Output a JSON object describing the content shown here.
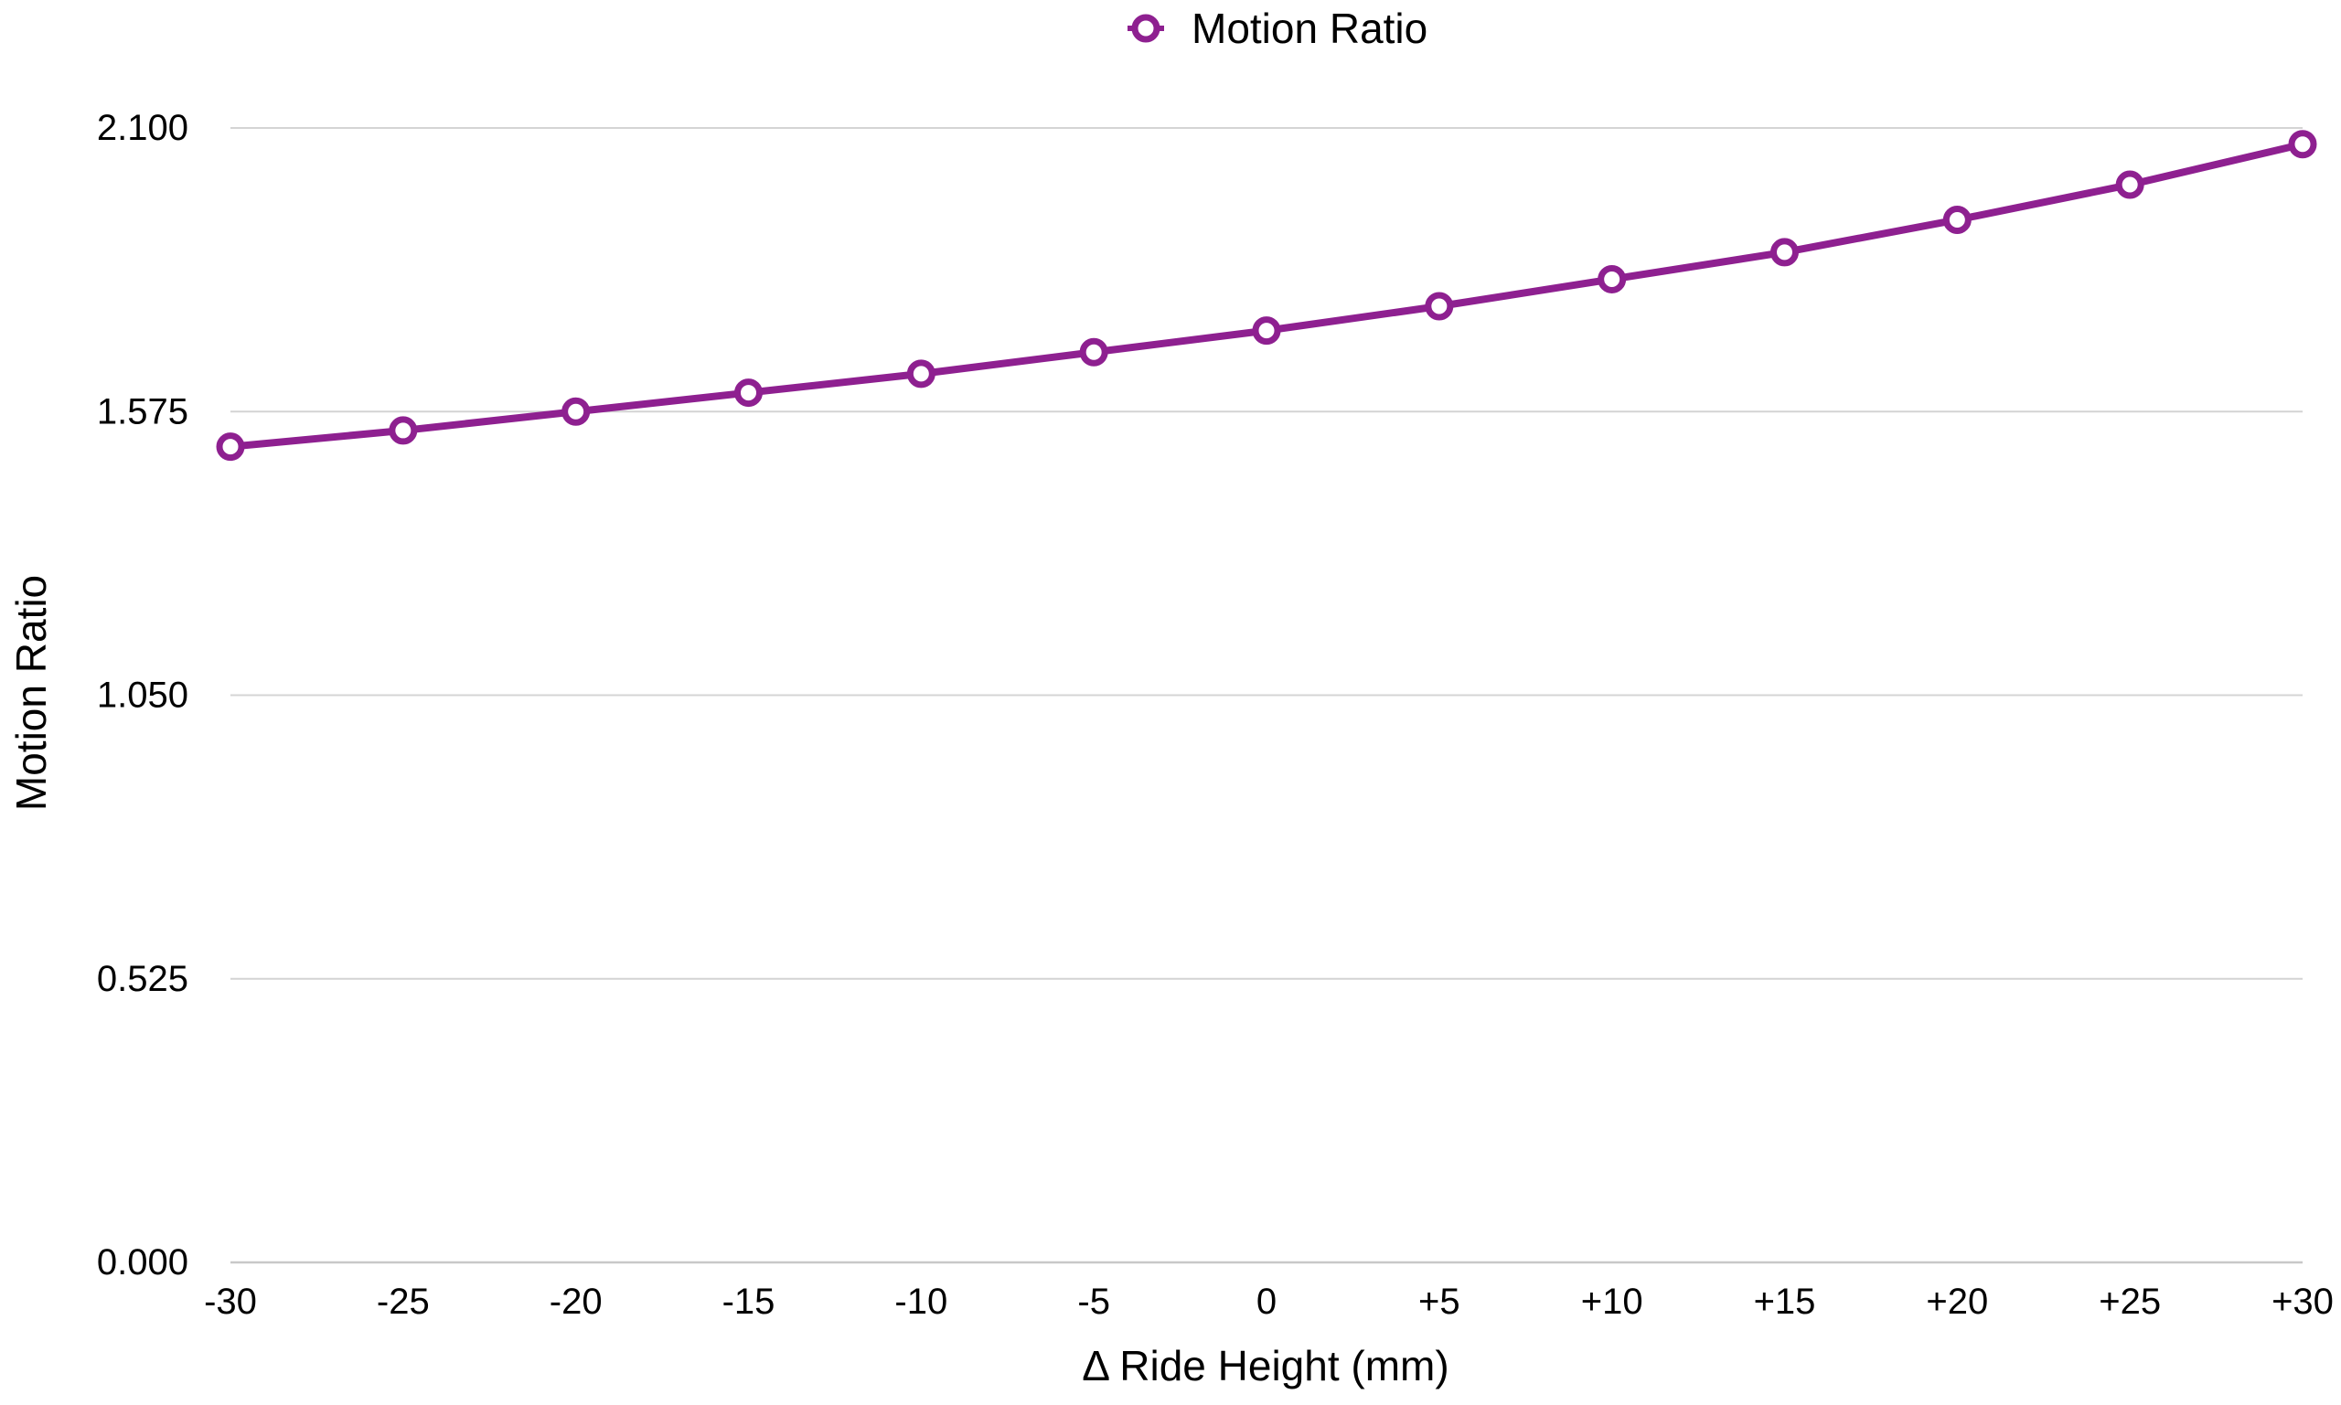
{
  "chart_data": {
    "type": "line",
    "title": "",
    "xlabel": "Δ Ride Height (mm)",
    "ylabel": "Motion Ratio",
    "categories": [
      "-30",
      "-25",
      "-20",
      "-15",
      "-10",
      "-5",
      "0",
      "+5",
      "+10",
      "+15",
      "+20",
      "+25",
      "+30"
    ],
    "series": [
      {
        "name": "Motion Ratio",
        "color": "#8e2090",
        "marker": "hollow-circle",
        "values": [
          1.51,
          1.54,
          1.575,
          1.61,
          1.645,
          1.685,
          1.725,
          1.77,
          1.82,
          1.87,
          1.93,
          1.995,
          2.07
        ]
      }
    ],
    "ylim": [
      0,
      2.1
    ],
    "yticks": [
      "0.000",
      "0.525",
      "1.050",
      "1.575",
      "2.100"
    ],
    "grid": true,
    "legend": "top-center"
  }
}
